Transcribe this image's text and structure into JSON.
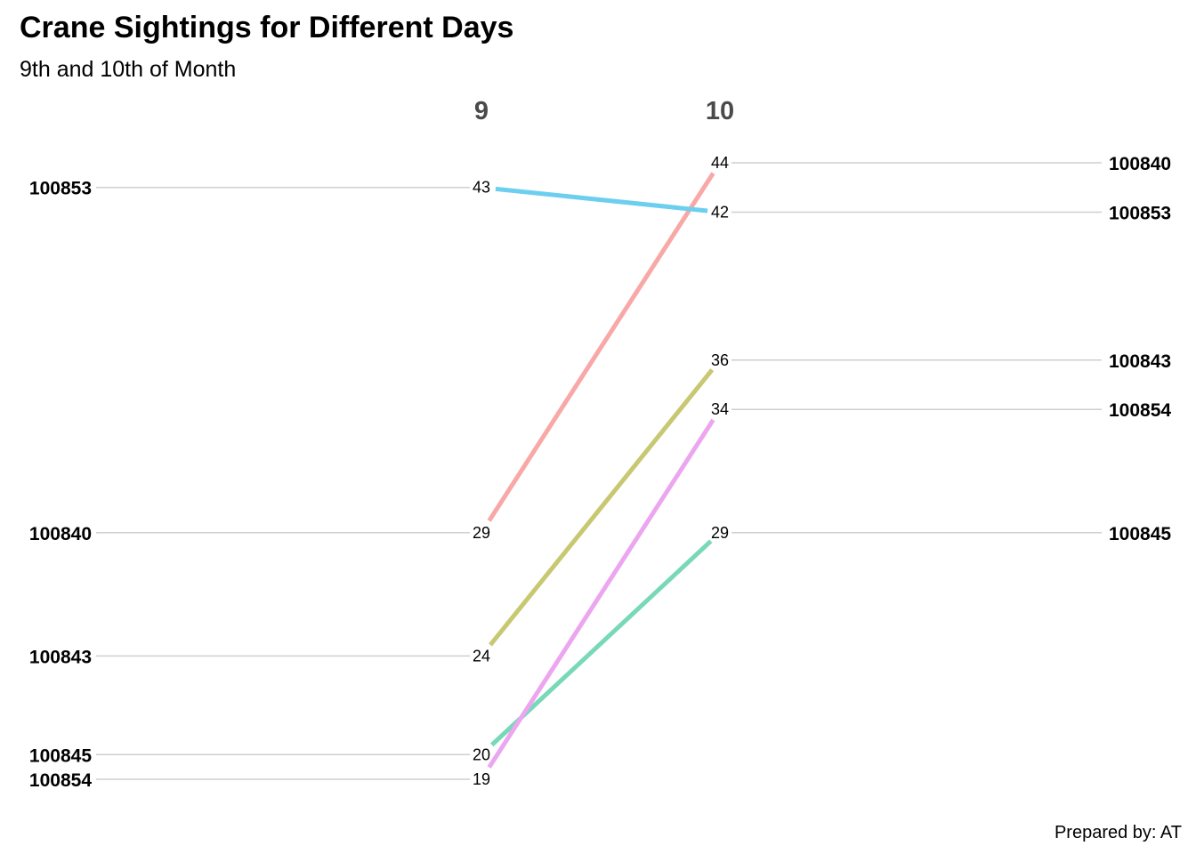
{
  "chart_data": {
    "type": "slope",
    "title": "Crane Sightings for Different Days",
    "subtitle": "9th and 10th of Month",
    "caption": "Prepared by: AT",
    "x": [
      "9",
      "10"
    ],
    "ylim": [
      19,
      44
    ],
    "grid": false,
    "series": [
      {
        "name": "100840",
        "values": [
          29,
          44
        ],
        "color": "#f8a8a6"
      },
      {
        "name": "100843",
        "values": [
          24,
          36
        ],
        "color": "#c8c872"
      },
      {
        "name": "100845",
        "values": [
          20,
          29
        ],
        "color": "#78d8b8"
      },
      {
        "name": "100853",
        "values": [
          43,
          42
        ],
        "color": "#6ccff0"
      },
      {
        "name": "100854",
        "values": [
          19,
          34
        ],
        "color": "#eca6f0"
      }
    ]
  }
}
